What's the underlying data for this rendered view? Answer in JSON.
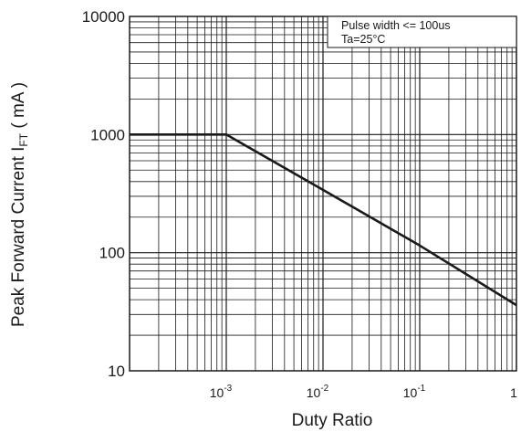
{
  "chart_data": {
    "type": "line",
    "xscale": "log",
    "yscale": "log",
    "xlim": [
      0.0001,
      1
    ],
    "ylim": [
      10,
      10000
    ],
    "grid": true,
    "xlabel": "Duty Ratio",
    "ylabel_main": "Peak Forward Current I",
    "ylabel_sub": "FT",
    "ylabel_tail": " ( mA )",
    "x_ticks": [
      {
        "value": 0.001,
        "base": "10",
        "exp": "-3"
      },
      {
        "value": 0.01,
        "base": "10",
        "exp": "-2"
      },
      {
        "value": 0.1,
        "base": "10",
        "exp": "-1"
      },
      {
        "value": 1,
        "base": "1",
        "exp": ""
      }
    ],
    "y_ticks": [
      {
        "value": 10,
        "label": "10"
      },
      {
        "value": 100,
        "label": "100"
      },
      {
        "value": 1000,
        "label": "1000"
      },
      {
        "value": 10000,
        "label": "10000"
      }
    ],
    "series": [
      {
        "x": [
          0.0001,
          0.001,
          0.01,
          0.1,
          1
        ],
        "y": [
          1000,
          1000,
          340,
          115,
          36
        ],
        "color": "#1a1a1a"
      }
    ],
    "annotation": {
      "line1": "Pulse width <= 100us",
      "line2": "Ta=25°C",
      "position": "top-right"
    }
  }
}
